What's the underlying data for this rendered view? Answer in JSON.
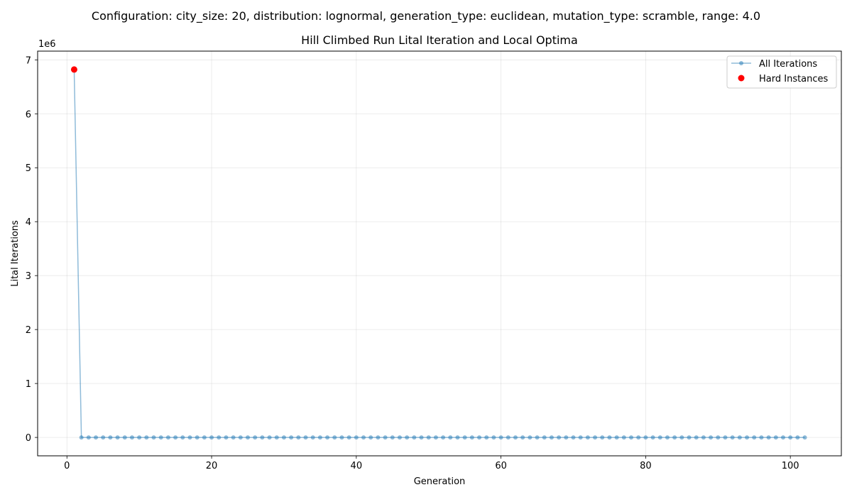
{
  "figure": {
    "suptitle": "Configuration: city_size: 20, distribution: lognormal, generation_type: euclidean, mutation_type: scramble, range: 4.0"
  },
  "chart_data": {
    "type": "line",
    "title": "Hill Climbed Run Lital Iteration and Local Optima",
    "xlabel": "Generation",
    "ylabel": "Lital Iterations",
    "y_offset_label": "1e6",
    "xlim": [
      -4.05,
      107.05
    ],
    "ylim": [
      -341000,
      7162000
    ],
    "x_ticks": [
      0,
      20,
      40,
      60,
      80,
      100
    ],
    "y_ticks": [
      0,
      1,
      2,
      3,
      4,
      5,
      6,
      7
    ],
    "y_tick_scale": 1000000,
    "grid": true,
    "legend_position": "upper right",
    "series": [
      {
        "name": "All Iterations",
        "color": "#1f77b4",
        "x_start": 1,
        "x_end": 102,
        "values_first": [
          6821000
        ],
        "values_rest_constant": 0
      },
      {
        "name": "Hard Instances",
        "color": "#ff0000",
        "x": [
          1
        ],
        "y": [
          6821000
        ]
      }
    ]
  }
}
